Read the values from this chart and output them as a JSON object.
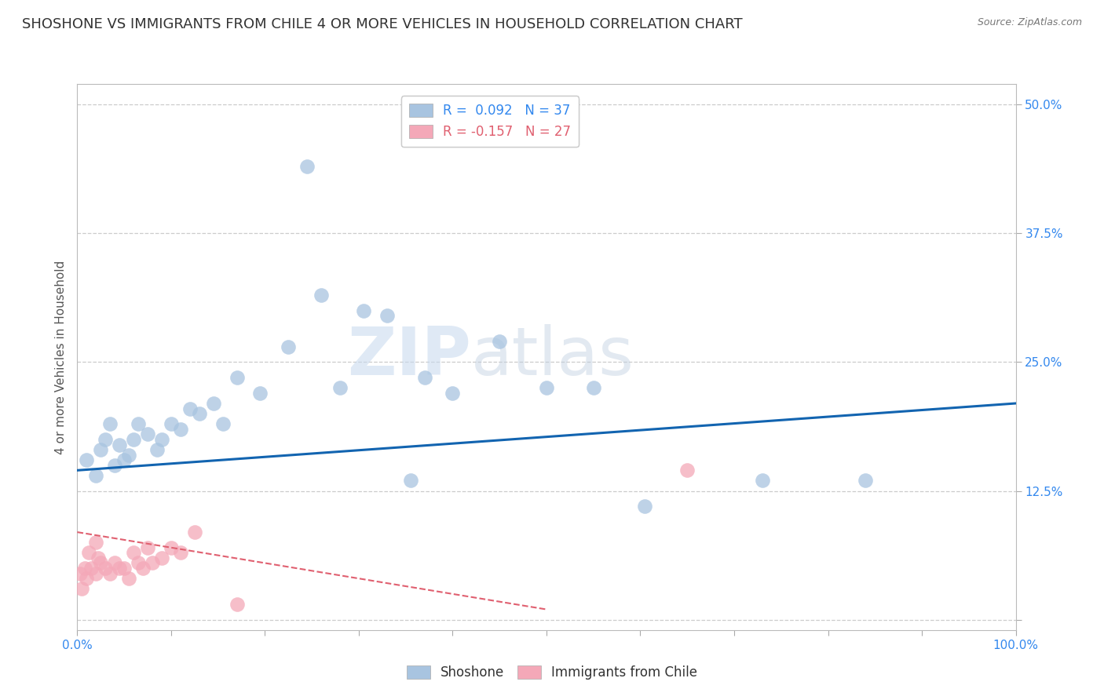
{
  "title": "SHOSHONE VS IMMIGRANTS FROM CHILE 4 OR MORE VEHICLES IN HOUSEHOLD CORRELATION CHART",
  "source_text": "Source: ZipAtlas.com",
  "ylabel": "4 or more Vehicles in Household",
  "xlim": [
    0.0,
    100.0
  ],
  "ylim": [
    -1.0,
    52.0
  ],
  "xticks": [
    0.0,
    10.0,
    20.0,
    30.0,
    40.0,
    50.0,
    60.0,
    70.0,
    80.0,
    90.0,
    100.0
  ],
  "xticklabels": [
    "0.0%",
    "",
    "",
    "",
    "",
    "",
    "",
    "",
    "",
    "",
    "100.0%"
  ],
  "ytick_positions": [
    0,
    12.5,
    25.0,
    37.5,
    50.0
  ],
  "ytick_labels": [
    "",
    "12.5%",
    "25.0%",
    "37.5%",
    "50.0%"
  ],
  "grid_color": "#cccccc",
  "background_color": "#ffffff",
  "shoshone_color": "#a8c4e0",
  "chile_color": "#f4a8b8",
  "shoshone_line_color": "#1264b0",
  "chile_line_color": "#e06070",
  "legend_r_shoshone": "R =  0.092",
  "legend_n_shoshone": "N = 37",
  "legend_r_chile": "R = -0.157",
  "legend_n_chile": "N = 27",
  "shoshone_scatter": [
    [
      1.0,
      15.5
    ],
    [
      2.0,
      14.0
    ],
    [
      2.5,
      16.5
    ],
    [
      3.0,
      17.5
    ],
    [
      3.5,
      19.0
    ],
    [
      4.0,
      15.0
    ],
    [
      4.5,
      17.0
    ],
    [
      5.0,
      15.5
    ],
    [
      5.5,
      16.0
    ],
    [
      6.0,
      17.5
    ],
    [
      6.5,
      19.0
    ],
    [
      7.5,
      18.0
    ],
    [
      8.5,
      16.5
    ],
    [
      9.0,
      17.5
    ],
    [
      10.0,
      19.0
    ],
    [
      11.0,
      18.5
    ],
    [
      12.0,
      20.5
    ],
    [
      13.0,
      20.0
    ],
    [
      14.5,
      21.0
    ],
    [
      15.5,
      19.0
    ],
    [
      17.0,
      23.5
    ],
    [
      19.5,
      22.0
    ],
    [
      22.5,
      26.5
    ],
    [
      24.5,
      44.0
    ],
    [
      26.0,
      31.5
    ],
    [
      28.0,
      22.5
    ],
    [
      30.5,
      30.0
    ],
    [
      33.0,
      29.5
    ],
    [
      35.5,
      13.5
    ],
    [
      37.0,
      23.5
    ],
    [
      40.0,
      22.0
    ],
    [
      45.0,
      27.0
    ],
    [
      50.0,
      22.5
    ],
    [
      55.0,
      22.5
    ],
    [
      60.5,
      11.0
    ],
    [
      73.0,
      13.5
    ],
    [
      84.0,
      13.5
    ]
  ],
  "chile_scatter": [
    [
      0.3,
      4.5
    ],
    [
      0.5,
      3.0
    ],
    [
      0.8,
      5.0
    ],
    [
      1.0,
      4.0
    ],
    [
      1.2,
      6.5
    ],
    [
      1.5,
      5.0
    ],
    [
      2.0,
      7.5
    ],
    [
      2.0,
      4.5
    ],
    [
      2.2,
      6.0
    ],
    [
      2.5,
      5.5
    ],
    [
      3.0,
      5.0
    ],
    [
      3.5,
      4.5
    ],
    [
      4.0,
      5.5
    ],
    [
      4.5,
      5.0
    ],
    [
      5.0,
      5.0
    ],
    [
      5.5,
      4.0
    ],
    [
      6.0,
      6.5
    ],
    [
      6.5,
      5.5
    ],
    [
      7.0,
      5.0
    ],
    [
      7.5,
      7.0
    ],
    [
      8.0,
      5.5
    ],
    [
      9.0,
      6.0
    ],
    [
      10.0,
      7.0
    ],
    [
      11.0,
      6.5
    ],
    [
      12.5,
      8.5
    ],
    [
      17.0,
      1.5
    ],
    [
      65.0,
      14.5
    ]
  ],
  "shoshone_line": [
    0.0,
    14.5,
    100.0,
    21.0
  ],
  "chile_line": [
    0.0,
    8.5,
    40.0,
    2.5
  ],
  "watermark_text1": "ZIP",
  "watermark_text2": "atlas",
  "title_fontsize": 13,
  "axis_label_fontsize": 11,
  "tick_fontsize": 11,
  "legend_fontsize": 12
}
